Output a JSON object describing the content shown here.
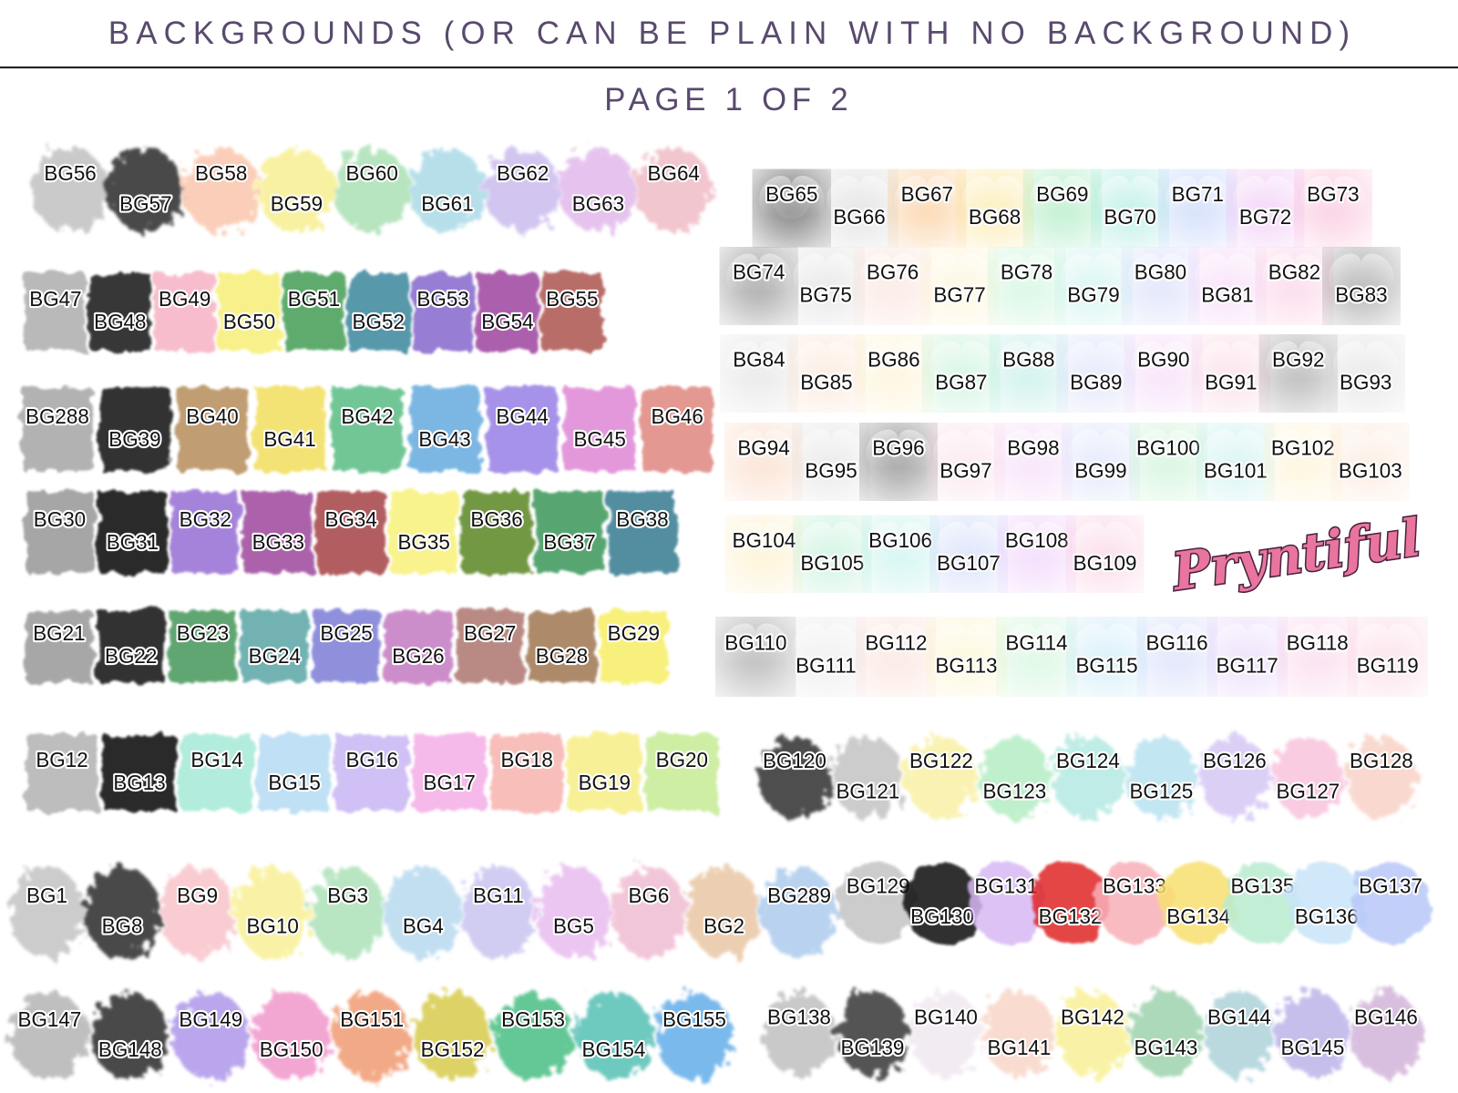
{
  "header": {
    "title": "BACKGROUNDS (OR CAN BE PLAIN WITH NO BACKGROUND)",
    "subtitle": "PAGE 1 OF 2"
  },
  "logo": {
    "text": "Pryntiful"
  },
  "groups": [
    {
      "items": [
        {
          "label": "BG56",
          "color": "#bdbdbd"
        },
        {
          "label": "BG57",
          "color": "#1a1a1a"
        },
        {
          "label": "BG58",
          "color": "#f9c3a8"
        },
        {
          "label": "BG59",
          "color": "#f7ee8a"
        },
        {
          "label": "BG60",
          "color": "#a6dfb0"
        },
        {
          "label": "BG61",
          "color": "#a6d8e6"
        },
        {
          "label": "BG62",
          "color": "#c7b9ee"
        },
        {
          "label": "BG63",
          "color": "#e0b5ea"
        },
        {
          "label": "BG64",
          "color": "#f0b8c2"
        }
      ]
    },
    {
      "items": [
        {
          "label": "BG47",
          "color": "#b0b0b0"
        },
        {
          "label": "BG48",
          "color": "#1c1c1c"
        },
        {
          "label": "BG49",
          "color": "#f6b5c6"
        },
        {
          "label": "BG50",
          "color": "#f8ef7a"
        },
        {
          "label": "BG51",
          "color": "#4aa05a"
        },
        {
          "label": "BG52",
          "color": "#3f8aa0"
        },
        {
          "label": "BG53",
          "color": "#8a6ccf"
        },
        {
          "label": "BG54",
          "color": "#a14aa2"
        },
        {
          "label": "BG55",
          "color": "#b05a55"
        }
      ]
    },
    {
      "items": [
        {
          "label": "BG288",
          "color": "#a8a8a8"
        },
        {
          "label": "BG39",
          "color": "#151515"
        },
        {
          "label": "BG40",
          "color": "#b8905e"
        },
        {
          "label": "BG41",
          "color": "#f2e063"
        },
        {
          "label": "BG42",
          "color": "#5fbf88"
        },
        {
          "label": "BG43",
          "color": "#6aaee0"
        },
        {
          "label": "BG44",
          "color": "#9b84e6"
        },
        {
          "label": "BG45",
          "color": "#e08ad8"
        },
        {
          "label": "BG46",
          "color": "#e08a84"
        }
      ]
    },
    {
      "items": [
        {
          "label": "BG30",
          "color": "#9a9a9a"
        },
        {
          "label": "BG31",
          "color": "#101010"
        },
        {
          "label": "BG32",
          "color": "#9a72d6"
        },
        {
          "label": "BG33",
          "color": "#a04ea0"
        },
        {
          "label": "BG34",
          "color": "#a8464c"
        },
        {
          "label": "BG35",
          "color": "#f8f27e"
        },
        {
          "label": "BG36",
          "color": "#5e8a2a"
        },
        {
          "label": "BG37",
          "color": "#3f9a5e"
        },
        {
          "label": "BG38",
          "color": "#3a7f94"
        }
      ]
    },
    {
      "items": [
        {
          "label": "BG21",
          "color": "#9c9c9c"
        },
        {
          "label": "BG22",
          "color": "#141414"
        },
        {
          "label": "BG23",
          "color": "#4c9a5e"
        },
        {
          "label": "BG24",
          "color": "#5fa8a8"
        },
        {
          "label": "BG25",
          "color": "#8080d8"
        },
        {
          "label": "BG26",
          "color": "#c67ec4"
        },
        {
          "label": "BG27",
          "color": "#b07a72"
        },
        {
          "label": "BG28",
          "color": "#a27a55"
        },
        {
          "label": "BG29",
          "color": "#f8ef6a"
        }
      ]
    },
    {
      "items": [
        {
          "label": "BG12",
          "color": "#b4b4b4"
        },
        {
          "label": "BG13",
          "color": "#111111"
        },
        {
          "label": "BG14",
          "color": "#a8ead8"
        },
        {
          "label": "BG15",
          "color": "#b8dcf4"
        },
        {
          "label": "BG16",
          "color": "#cbb8f4"
        },
        {
          "label": "BG17",
          "color": "#f4b0e8"
        },
        {
          "label": "BG18",
          "color": "#f8b6b0"
        },
        {
          "label": "BG19",
          "color": "#f8ef88"
        },
        {
          "label": "BG20",
          "color": "#c8ec98"
        }
      ]
    },
    {
      "items": [
        {
          "label": "BG1",
          "color": "#c0c0c0"
        },
        {
          "label": "BG8",
          "color": "#1a1a1a"
        },
        {
          "label": "BG9",
          "color": "#f8c0c8"
        },
        {
          "label": "BG10",
          "color": "#f8f090"
        },
        {
          "label": "BG3",
          "color": "#a8e0b4"
        },
        {
          "label": "BG4",
          "color": "#b4d8ee"
        },
        {
          "label": "BG11",
          "color": "#c6c0f0"
        },
        {
          "label": "BG5",
          "color": "#e6b8ee"
        },
        {
          "label": "BG6",
          "color": "#f0b8d0"
        },
        {
          "label": "BG2",
          "color": "#e8c4a0"
        },
        {
          "label": "BG289",
          "color": "#a8c8ec"
        }
      ]
    },
    {
      "items": [
        {
          "label": "BG147",
          "color": "#b0b0b0"
        },
        {
          "label": "BG148",
          "color": "#1c1c1c"
        },
        {
          "label": "BG149",
          "color": "#a890e8"
        },
        {
          "label": "BG150",
          "color": "#f090c8"
        },
        {
          "label": "BG151",
          "color": "#f0946a"
        },
        {
          "label": "BG152",
          "color": "#d4c840"
        },
        {
          "label": "BG153",
          "color": "#3cba7c"
        },
        {
          "label": "BG154",
          "color": "#4cbcb0"
        },
        {
          "label": "BG155",
          "color": "#5aa8e8"
        }
      ]
    },
    {
      "items": [
        {
          "label": "BG65",
          "color": "#111111"
        },
        {
          "label": "BG66",
          "color": "#c8c8c8"
        },
        {
          "label": "BG67",
          "color": "#f8b060"
        },
        {
          "label": "BG68",
          "color": "#f8dc70"
        },
        {
          "label": "BG69",
          "color": "#7ee0a0"
        },
        {
          "label": "BG70",
          "color": "#80e0d0"
        },
        {
          "label": "BG71",
          "color": "#a8c0f8"
        },
        {
          "label": "BG72",
          "color": "#e8a8f0"
        },
        {
          "label": "BG73",
          "color": "#f8a0c8"
        }
      ]
    },
    {
      "items": [
        {
          "label": "BG74",
          "color": "#555555"
        },
        {
          "label": "BG75",
          "color": "#d0d0d0"
        },
        {
          "label": "BG76",
          "color": "#f8d4c8"
        },
        {
          "label": "BG77",
          "color": "#fbeec0"
        },
        {
          "label": "BG78",
          "color": "#b0f0c8"
        },
        {
          "label": "BG79",
          "color": "#b0ece4"
        },
        {
          "label": "BG80",
          "color": "#c4ccf8"
        },
        {
          "label": "BG81",
          "color": "#f0c4f4"
        },
        {
          "label": "BG82",
          "color": "#f8b8d8"
        },
        {
          "label": "BG83",
          "color": "#666666"
        }
      ]
    },
    {
      "items": [
        {
          "label": "BG84",
          "color": "#d4d4d4"
        },
        {
          "label": "BG85",
          "color": "#f8d8c0"
        },
        {
          "label": "BG86",
          "color": "#fbecbc"
        },
        {
          "label": "BG87",
          "color": "#a8ecc4"
        },
        {
          "label": "BG88",
          "color": "#a0e4dc"
        },
        {
          "label": "BG89",
          "color": "#c8d0f8"
        },
        {
          "label": "BG90",
          "color": "#f0c8f4"
        },
        {
          "label": "BG91",
          "color": "#f8c4d8"
        },
        {
          "label": "BG92",
          "color": "#777777"
        },
        {
          "label": "BG93",
          "color": "#d0d0d0"
        }
      ]
    },
    {
      "items": [
        {
          "label": "BG94",
          "color": "#f8c8a8"
        },
        {
          "label": "BG95",
          "color": "#d4d4d4"
        },
        {
          "label": "BG96",
          "color": "#444444"
        },
        {
          "label": "BG97",
          "color": "#f8d0e0"
        },
        {
          "label": "BG98",
          "color": "#f0c8f4"
        },
        {
          "label": "BG99",
          "color": "#c8d4f8"
        },
        {
          "label": "BG100",
          "color": "#b0ecc0"
        },
        {
          "label": "BG101",
          "color": "#b0e8e8"
        },
        {
          "label": "BG102",
          "color": "#fbecbc"
        },
        {
          "label": "BG103",
          "color": "#fadcc4"
        }
      ]
    },
    {
      "items": [
        {
          "label": "BG104",
          "color": "#fbe8b0"
        },
        {
          "label": "BG105",
          "color": "#a0e8c4"
        },
        {
          "label": "BG106",
          "color": "#a8ece4"
        },
        {
          "label": "BG107",
          "color": "#b8c8f8"
        },
        {
          "label": "BG108",
          "color": "#e8b8f8"
        },
        {
          "label": "BG109",
          "color": "#f8b8d4"
        }
      ]
    },
    {
      "items": [
        {
          "label": "BG110",
          "color": "#777777"
        },
        {
          "label": "BG111",
          "color": "#e0e0e0"
        },
        {
          "label": "BG112",
          "color": "#f8d0c4"
        },
        {
          "label": "BG113",
          "color": "#fbf0b8"
        },
        {
          "label": "BG114",
          "color": "#b8f0c8"
        },
        {
          "label": "BG115",
          "color": "#b0e0f4"
        },
        {
          "label": "BG116",
          "color": "#c0ccf8"
        },
        {
          "label": "BG117",
          "color": "#dcc0f8"
        },
        {
          "label": "BG118",
          "color": "#f8c0e0"
        },
        {
          "label": "BG119",
          "color": "#f8c4d4"
        }
      ]
    },
    {
      "items": [
        {
          "label": "BG120",
          "color": "#222222"
        },
        {
          "label": "BG121",
          "color": "#c0c0c0"
        },
        {
          "label": "BG122",
          "color": "#f8f0a0"
        },
        {
          "label": "BG123",
          "color": "#b0ecc0"
        },
        {
          "label": "BG124",
          "color": "#b0e8e0"
        },
        {
          "label": "BG125",
          "color": "#b4e0f0"
        },
        {
          "label": "BG126",
          "color": "#d4c4f4"
        },
        {
          "label": "BG127",
          "color": "#f8c0dc"
        },
        {
          "label": "BG128",
          "color": "#f8d0c4"
        }
      ]
    },
    {
      "items": [
        {
          "label": "BG129",
          "color": "#c4c4c4"
        },
        {
          "label": "BG130",
          "color": "#111111"
        },
        {
          "label": "BG131",
          "color": "#d8b8f4"
        },
        {
          "label": "BG132",
          "color": "#e02828"
        },
        {
          "label": "BG133",
          "color": "#f8b0b8"
        },
        {
          "label": "BG134",
          "color": "#f8e070"
        },
        {
          "label": "BG135",
          "color": "#b8ecd0"
        },
        {
          "label": "BG136",
          "color": "#c8e4f8"
        },
        {
          "label": "BG137",
          "color": "#b8c8f8"
        }
      ]
    },
    {
      "items": [
        {
          "label": "BG138",
          "color": "#bcbcbc"
        },
        {
          "label": "BG139",
          "color": "#2a2a2a"
        },
        {
          "label": "BG140",
          "color": "#f0e8f0"
        },
        {
          "label": "BG141",
          "color": "#f8d4c4"
        },
        {
          "label": "BG142",
          "color": "#f8f090"
        },
        {
          "label": "BG143",
          "color": "#98d0a8"
        },
        {
          "label": "BG144",
          "color": "#a8d0d8"
        },
        {
          "label": "BG145",
          "color": "#b8b0e8"
        },
        {
          "label": "BG146",
          "color": "#d0b0d8"
        }
      ]
    }
  ]
}
